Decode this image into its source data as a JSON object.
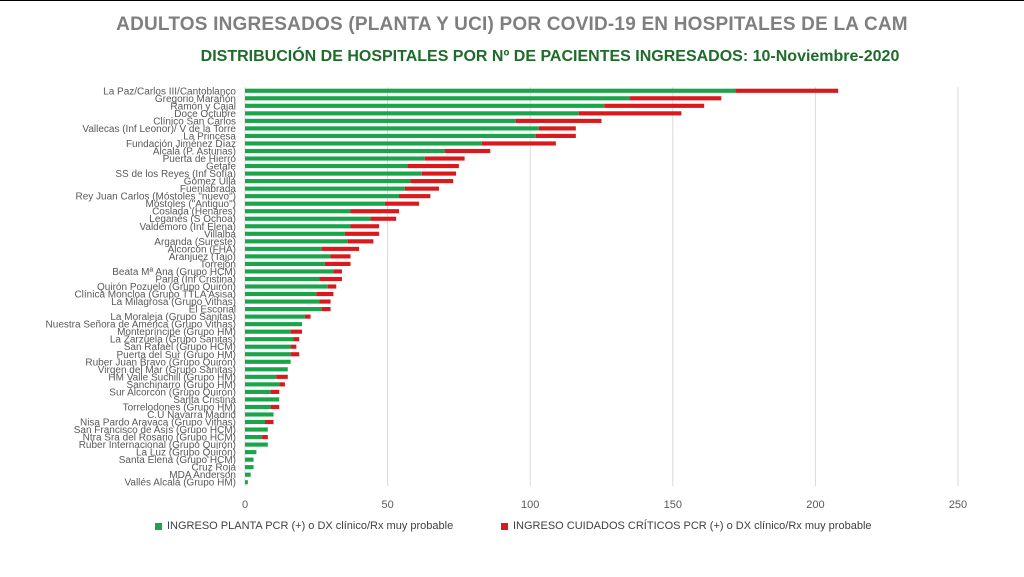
{
  "title": "ADULTOS INGRESADOS (PLANTA Y UCI) POR COVID-19 EN HOSPITALES DE LA CAM",
  "subtitle": "DISTRIBUCIÓN DE HOSPITALES POR Nº DE PACIENTES INGRESADOS: 10-Noviembre-2020",
  "colors": {
    "planta": "#1aa54b",
    "uci": "#d9191c",
    "grid": "#d9d9d9",
    "axis_text": "#595959"
  },
  "legend": [
    {
      "label": "INGRESO PLANTA PCR (+) o DX clínico/Rx muy probable",
      "color": "#1aa54b"
    },
    {
      "label": "INGRESO CUIDADOS CRÍTICOS PCR (+) o DX clínico/Rx muy probable",
      "color": "#d9191c"
    }
  ],
  "chart_data": {
    "type": "bar",
    "orientation": "horizontal",
    "stacked": true,
    "title": "ADULTOS INGRESADOS (PLANTA Y UCI) POR COVID-19 EN HOSPITALES DE LA CAM",
    "subtitle": "DISTRIBUCIÓN DE HOSPITALES POR Nº DE PACIENTES INGRESADOS: 10-Noviembre-2020",
    "xlim": [
      0,
      250
    ],
    "xticks": [
      0,
      50,
      100,
      150,
      200,
      250
    ],
    "grid": true,
    "legend_position": "bottom",
    "categories": [
      "La Paz/Carlos III/Cantoblanco",
      "Gregorio Marañón",
      "Ramón y Cajal",
      "Doce Octubre",
      "Clínico San Carlos",
      "Vallecas (Inf Leonor)/ V de la Torre",
      "La Princesa",
      "Fundación Jiménez Díaz",
      "Alcalá (P. Asturias)",
      "Puerta de Hierro",
      "Getafe",
      "SS de los Reyes (Inf Sofía)",
      "Gómez Ulla",
      "Fuenlabrada",
      "Rey Juan Carlos (Móstoles \"nuevo\")",
      "Móstoles (\"Antiguo\")",
      "Coslada (Henares)",
      "Leganés (S Ochoa)",
      "Valdemoro (Inf Elena)",
      "Villalba",
      "Arganda (Sureste)",
      "Alcorcón (FHA)",
      "Aranjuez (Tajo)",
      "Torrejón",
      "Beata Mª Ana (Grupo HCM)",
      "Parla (Inf Cristina)",
      "Quirón Pozuelo (Grupo Quirón)",
      "Clínica Moncloa (Grupo TTLA Asisa)",
      "La Milagrosa (Grupo Vithas)",
      "El Escorial",
      "La Moraleja (Grupo Sanitas)",
      "Nuestra Señora de América (Grupo Vithas)",
      "Montepríncipe (Grupo HM)",
      "La Zarzuela (Grupo Sanitas)",
      "San Rafael (Grupo HCM)",
      "Puerta del Sur (Grupo HM)",
      "Ruber Juan Bravo (Grupo Quirón)",
      "Virgen del Mar (Grupo Sanitas)",
      "HM Valle Suchill (Grupo HM)",
      "Sanchinarro (Grupo HM)",
      "Sur Alcorcón (Grupo Quirón)",
      "Santa Cristina",
      "Torrelodones (Grupo HM)",
      "C.U Navarra Madrid",
      "Nisa Pardo Aravaca (Grupo Vithas)",
      "San Francisco de Asís (Grupo HCM)",
      "Ntra Sra del Rosario (Grupo HCM)",
      "Ruber Internacional (Grupo Quirón)",
      "La Luz (Grupo Quirón)",
      "Santa Elena (Grupo HCM)",
      "Cruz Roja",
      "MDA Anderson",
      "Vallés Alcalá (Grupo HM)"
    ],
    "series": [
      {
        "name": "INGRESO PLANTA PCR (+) o DX clínico/Rx muy probable",
        "values": [
          172,
          135,
          126,
          117,
          95,
          103,
          102,
          83,
          70,
          63,
          57,
          62,
          58,
          56,
          54,
          49,
          37,
          44,
          37,
          35,
          36,
          27,
          30,
          28,
          31,
          26,
          29,
          25,
          26,
          27,
          21,
          20,
          16,
          17,
          16,
          16,
          16,
          15,
          11,
          12,
          9,
          12,
          9,
          10,
          7,
          8,
          6,
          8,
          4,
          3,
          3,
          2,
          1
        ]
      },
      {
        "name": "INGRESO CUIDADOS CRÍTICOS PCR (+) o DX clínico/Rx muy probable",
        "values": [
          36,
          32,
          35,
          36,
          30,
          13,
          14,
          26,
          16,
          14,
          18,
          12,
          15,
          12,
          11,
          12,
          17,
          9,
          10,
          12,
          9,
          13,
          7,
          9,
          3,
          8,
          3,
          6,
          4,
          3,
          2,
          0,
          4,
          2,
          2,
          3,
          0,
          0,
          4,
          2,
          3,
          0,
          3,
          0,
          3,
          0,
          2,
          0,
          0,
          0,
          0,
          0,
          0
        ]
      }
    ]
  }
}
